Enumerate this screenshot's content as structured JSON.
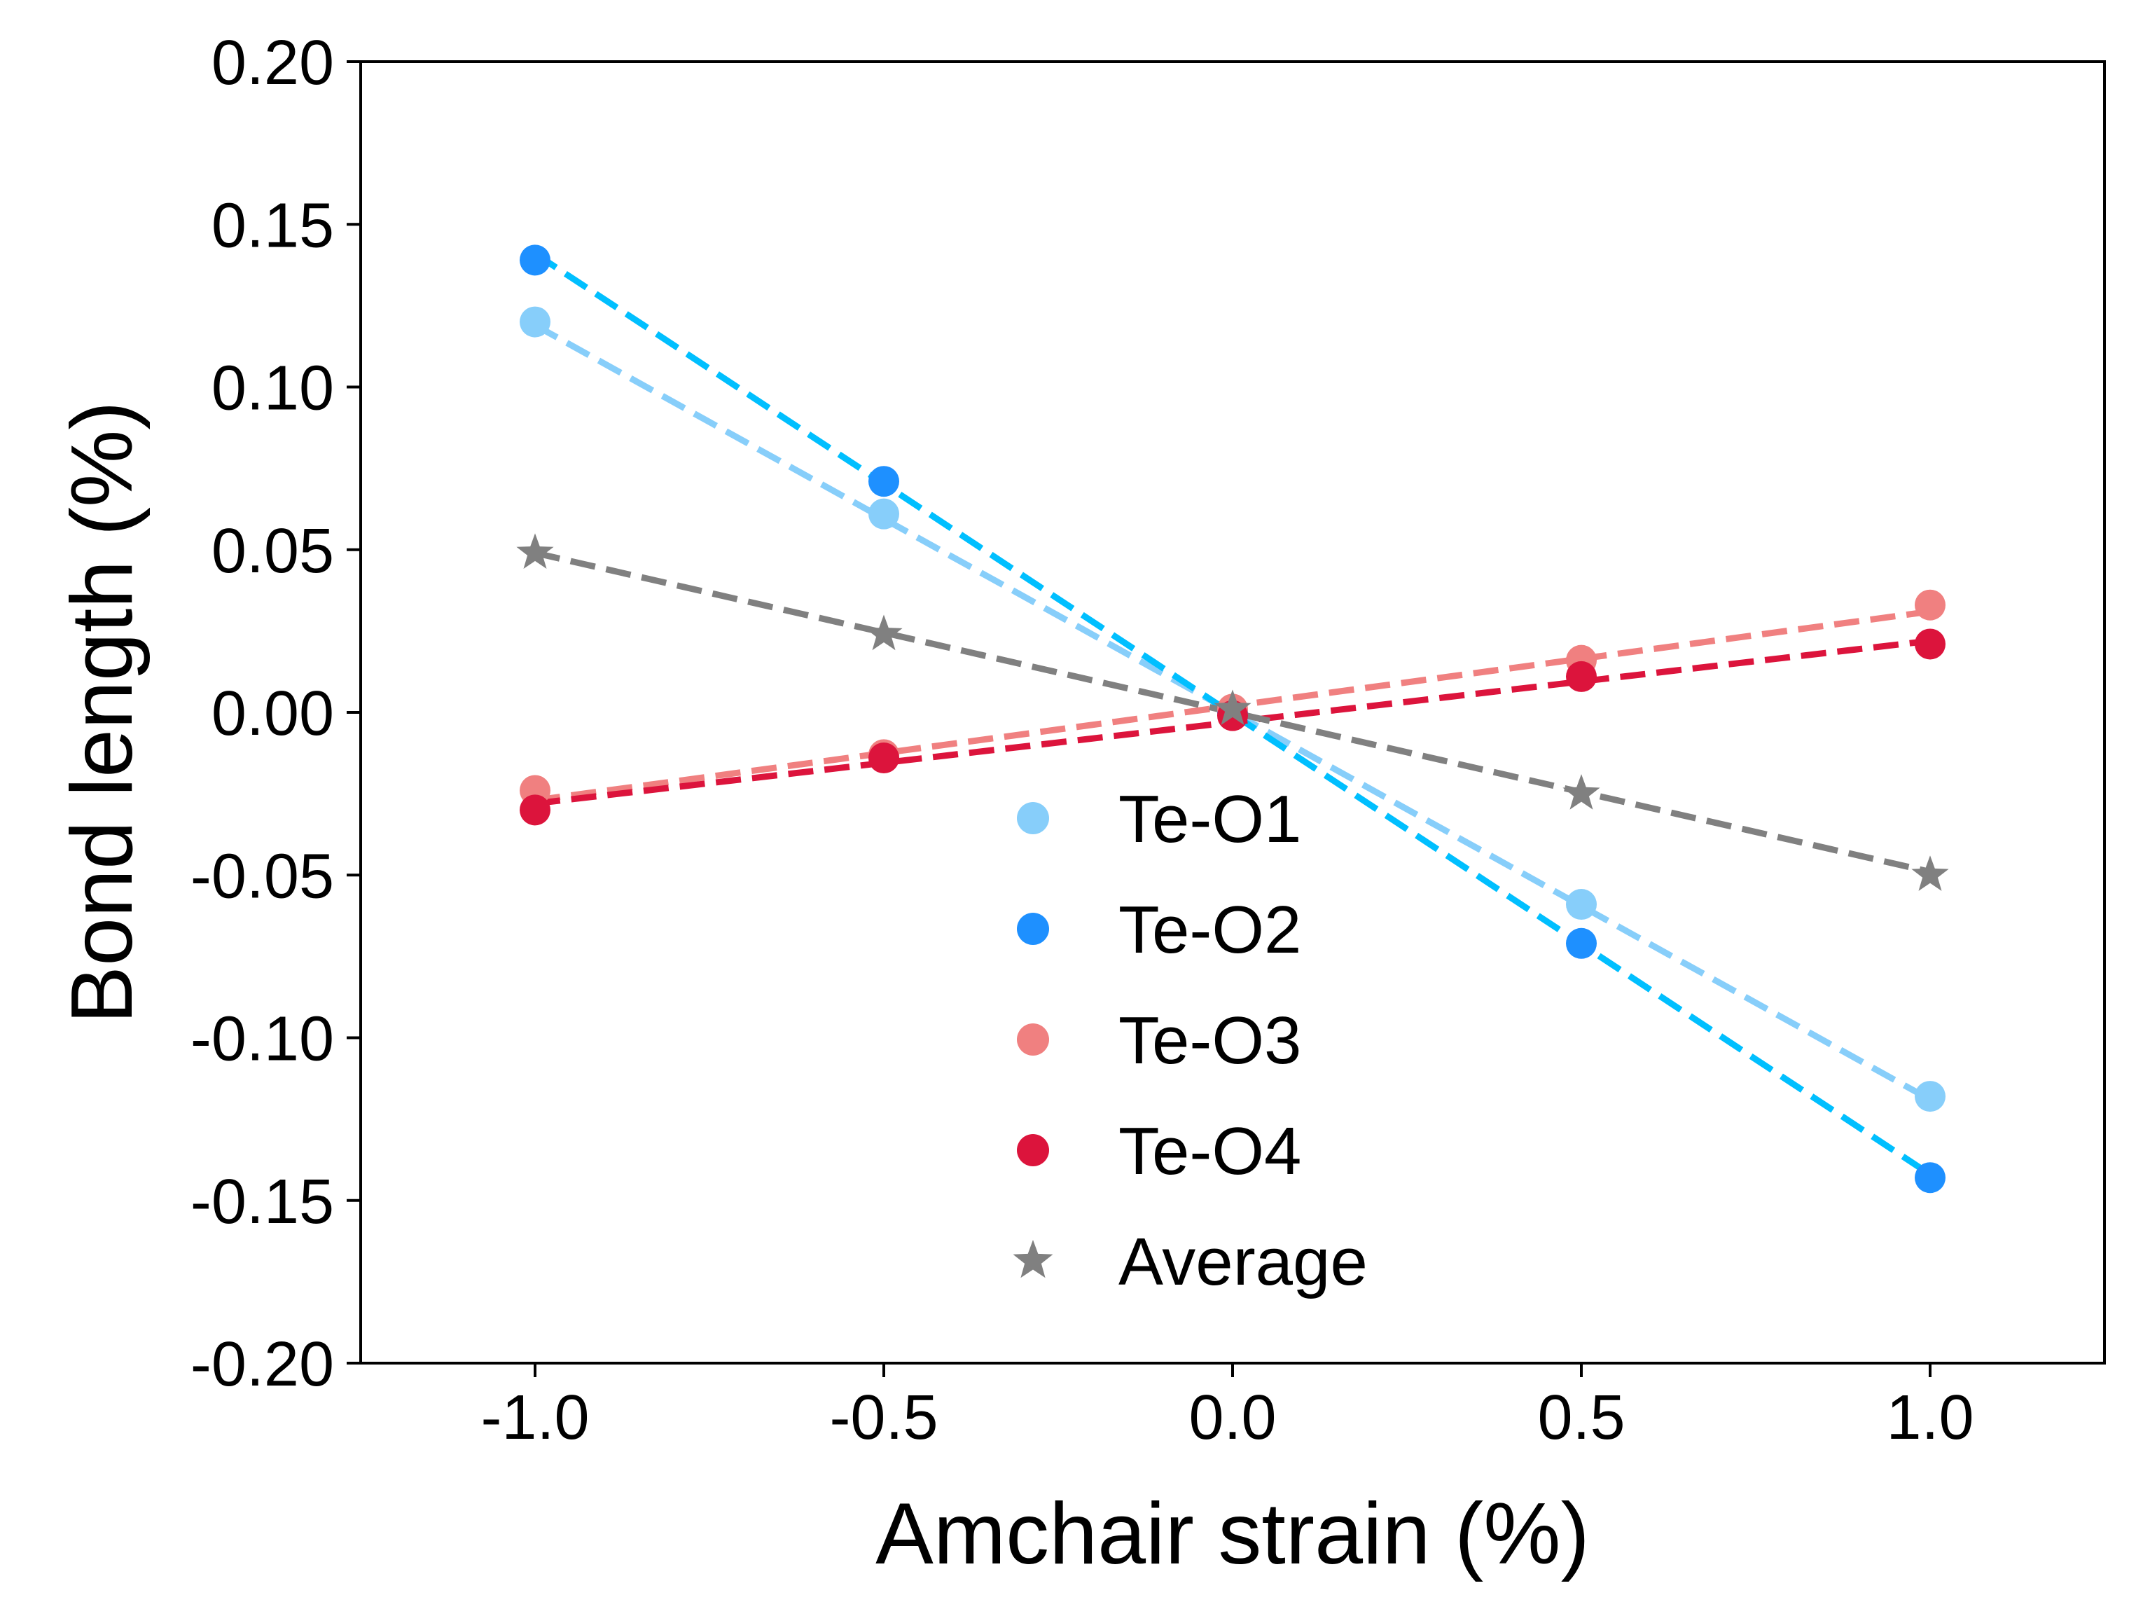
{
  "chart_data": {
    "type": "scatter",
    "xlabel": "Amchair strain (%)",
    "ylabel": "Bond length (%)",
    "xlim": [
      -1.25,
      1.25
    ],
    "ylim": [
      -0.2,
      0.2
    ],
    "x_ticks": [
      -1.0,
      -0.5,
      0.0,
      0.5,
      1.0
    ],
    "x_tick_labels": [
      "-1.0",
      "-0.5",
      "0.0",
      "0.5",
      "1.0"
    ],
    "y_ticks": [
      0.2,
      0.15,
      0.1,
      0.05,
      0.0,
      -0.05,
      -0.1,
      -0.15,
      -0.2
    ],
    "y_tick_labels": [
      "0.20",
      "0.15",
      "0.10",
      "0.05",
      "0.00",
      "-0.05",
      "-0.10",
      "-0.15",
      "-0.20"
    ],
    "grid": false,
    "legend_position": "lower-center",
    "series": [
      {
        "name": "Te-O1",
        "marker": "circle",
        "marker_color": "#87CEFA",
        "fit_color": "#87CEFA",
        "x": [
          -1.0,
          -0.5,
          0.0,
          0.5,
          1.0
        ],
        "y": [
          0.12,
          0.061,
          0.0,
          -0.059,
          -0.118
        ],
        "fit": [
          0.119,
          -0.119
        ]
      },
      {
        "name": "Te-O2",
        "marker": "circle",
        "marker_color": "#1E90FF",
        "fit_color": "#00BFFF",
        "x": [
          -1.0,
          -0.5,
          0.0,
          0.5,
          1.0
        ],
        "y": [
          0.139,
          0.071,
          0.0,
          -0.071,
          -0.143
        ],
        "fit": [
          0.141,
          -0.142
        ]
      },
      {
        "name": "Te-O3",
        "marker": "circle",
        "marker_color": "#F08080",
        "fit_color": "#F08080",
        "x": [
          -1.0,
          -0.5,
          0.0,
          0.5,
          1.0
        ],
        "y": [
          -0.024,
          -0.013,
          0.001,
          0.016,
          0.033
        ],
        "fit": [
          -0.027,
          0.031
        ]
      },
      {
        "name": "Te-O4",
        "marker": "circle",
        "marker_color": "#DC143C",
        "fit_color": "#DC143C",
        "x": [
          -1.0,
          -0.5,
          0.0,
          0.5,
          1.0
        ],
        "y": [
          -0.03,
          -0.014,
          -0.001,
          0.011,
          0.021
        ],
        "fit": [
          -0.028,
          0.022
        ]
      },
      {
        "name": "Average",
        "marker": "star",
        "marker_color": "#808080",
        "fit_color": "#808080",
        "x": [
          -1.0,
          -0.5,
          0.0,
          0.5,
          1.0
        ],
        "y": [
          0.049,
          0.024,
          0.001,
          -0.025,
          -0.05
        ],
        "fit": [
          0.049,
          -0.049
        ]
      }
    ]
  }
}
